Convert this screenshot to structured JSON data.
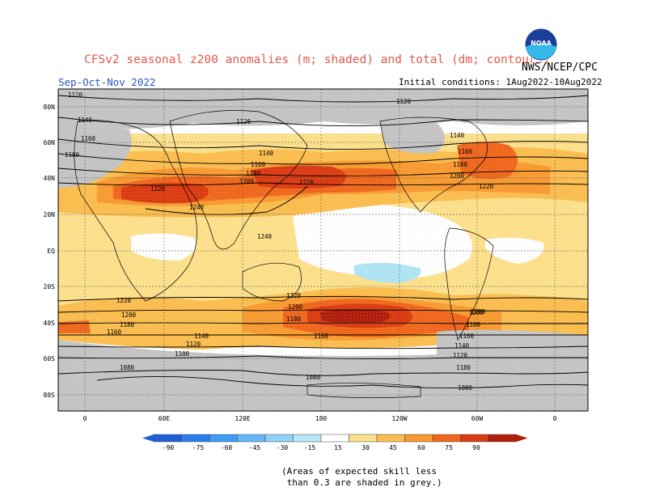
{
  "header": {
    "title": "CFSv2 seasonal z200 anomalies (m; shaded) and total (dm; contours)",
    "agency": "NWS/NCEP/CPC",
    "season": "Sep-Oct-Nov 2022",
    "initial_conditions": "Initial conditions: 1Aug2022-10Aug2022",
    "logo_text": "NOAA"
  },
  "map": {
    "lat_labels": [
      "80N",
      "60N",
      "40N",
      "20N",
      "EQ",
      "20S",
      "40S",
      "60S",
      "80S"
    ],
    "lon_labels": [
      "0",
      "60E",
      "120E",
      "180",
      "120W",
      "60W",
      "0"
    ],
    "contour_labels": [
      "1120",
      "1120",
      "1120",
      "1140",
      "1140",
      "1140",
      "1160",
      "1160",
      "1160",
      "1180",
      "1180",
      "1180",
      "1200",
      "1200",
      "1220",
      "1220",
      "1220",
      "1240",
      "1240",
      "1220",
      "1200",
      "1220",
      "1200",
      "1200",
      "1180",
      "1180",
      "1160",
      "1160",
      "1140",
      "1120",
      "1100",
      "1080",
      "1080",
      "1080",
      "1200",
      "1180",
      "1160",
      "1140",
      "1120",
      "1180"
    ],
    "colors": {
      "skill_mask": "#c4c4c4",
      "c15": "#fde08a",
      "c30": "#fbbd4e",
      "c45": "#f89a30",
      "c60": "#f0661b",
      "c75": "#dc3a10",
      "c90": "#b01d0a",
      "neg15": "#aee4f4"
    }
  },
  "colorbar": {
    "ticks": [
      "-90",
      "-75",
      "-60",
      "-45",
      "-30",
      "-15",
      "15",
      "30",
      "45",
      "60",
      "75",
      "90"
    ],
    "colors": [
      "#1f5fd6",
      "#2b7ff0",
      "#3d9bf5",
      "#64b7f9",
      "#8fd2f9",
      "#b8e8fb",
      "#ffffff",
      "#fde08a",
      "#fbbd4e",
      "#f89a30",
      "#f0661b",
      "#dc3a10",
      "#b01d0a"
    ]
  },
  "note": "(Areas of expected skill less\n than 0.3 are shaded in grey.)"
}
